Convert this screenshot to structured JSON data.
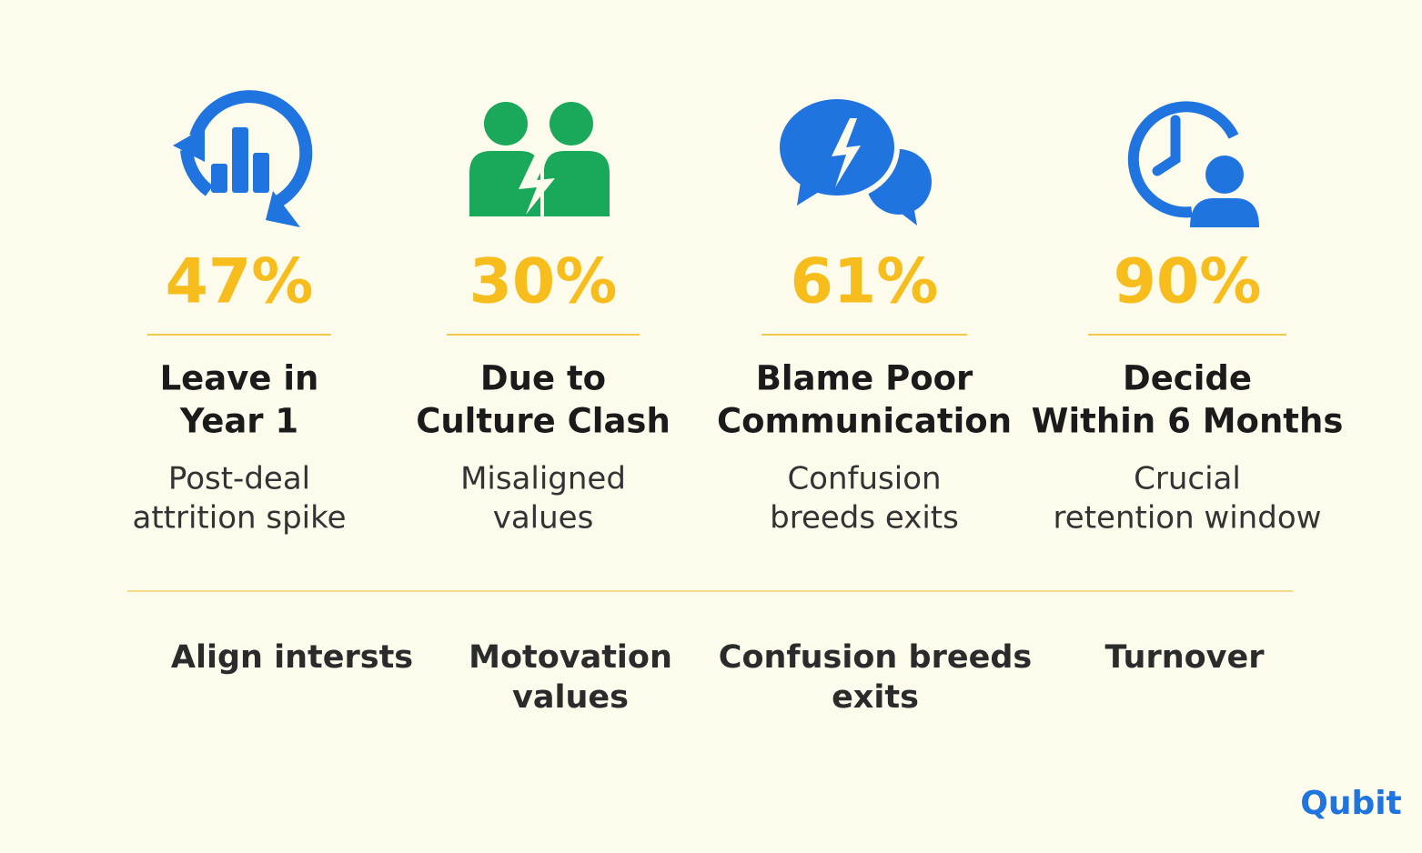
{
  "stats": [
    {
      "value": "47%",
      "title": [
        "Leave in",
        "Year 1"
      ],
      "subtitle": [
        "Post-deal",
        "attrition spike"
      ]
    },
    {
      "value": "30%",
      "title": [
        "Due to",
        "Culture Clash"
      ],
      "subtitle": [
        "Misaligned",
        "values"
      ]
    },
    {
      "value": "61%",
      "title": [
        "Blame Poor",
        "Communication"
      ],
      "subtitle": [
        "Confusion",
        "breeds exits"
      ]
    },
    {
      "value": "90%",
      "title": [
        "Decide",
        "Within 6 Months"
      ],
      "subtitle": [
        "Crucial",
        "retention window"
      ]
    }
  ],
  "actions": [
    [
      "Align intersts"
    ],
    [
      "Motovation",
      "values"
    ],
    [
      "Confusion breeds",
      "exits"
    ],
    [
      "Turnover"
    ]
  ],
  "logo": "Qubit"
}
